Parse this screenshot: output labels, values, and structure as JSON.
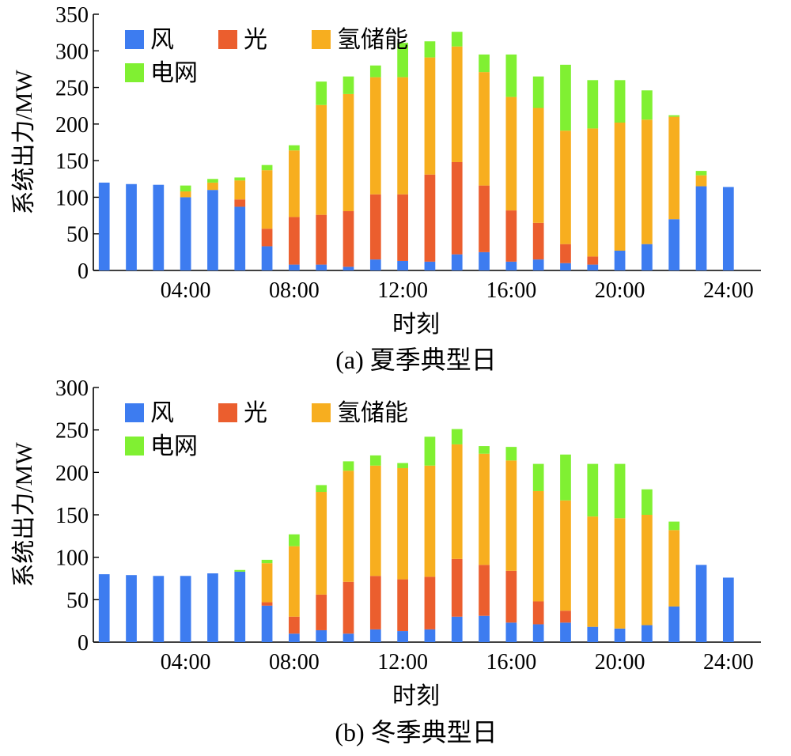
{
  "colors": {
    "wind": "#3D7CF0",
    "solar": "#EB5E2E",
    "hydrogen": "#F7AE1F",
    "grid": "#80F032"
  },
  "chart_data": [
    {
      "type": "bar",
      "stacked": true,
      "panel_caption": "(a) 夏季典型日",
      "xlabel": "时刻",
      "ylabel": "系统出力/MW",
      "ylim": [
        0,
        350
      ],
      "yticks": [
        0,
        50,
        100,
        150,
        200,
        250,
        300,
        350
      ],
      "xticks": [
        "04:00",
        "08:00",
        "12:00",
        "16:00",
        "20:00",
        "24:00"
      ],
      "xtick_hours": [
        4,
        8,
        12,
        16,
        20,
        24
      ],
      "x": [
        1,
        2,
        3,
        4,
        5,
        6,
        7,
        8,
        9,
        10,
        11,
        12,
        13,
        14,
        15,
        16,
        17,
        18,
        19,
        20,
        21,
        22,
        23,
        24
      ],
      "legend_position": "top-left",
      "series": [
        {
          "name": "风",
          "color_key": "wind",
          "values": [
            120,
            118,
            117,
            100,
            110,
            87,
            33,
            8,
            8,
            5,
            15,
            13,
            12,
            22,
            25,
            12,
            15,
            10,
            8,
            27,
            36,
            70,
            115,
            114
          ]
        },
        {
          "name": "光",
          "color_key": "solar",
          "values": [
            0,
            0,
            0,
            0,
            0,
            10,
            24,
            65,
            68,
            76,
            89,
            91,
            119,
            126,
            91,
            70,
            50,
            26,
            11,
            0,
            0,
            0,
            0,
            0
          ]
        },
        {
          "name": "氢储能",
          "color_key": "hydrogen",
          "values": [
            0,
            0,
            0,
            8,
            10,
            26,
            80,
            91,
            150,
            160,
            160,
            160,
            160,
            158,
            155,
            155,
            157,
            155,
            175,
            175,
            170,
            140,
            15,
            0
          ]
        },
        {
          "name": "电网",
          "color_key": "grid",
          "values": [
            0,
            0,
            0,
            8,
            5,
            4,
            7,
            7,
            32,
            24,
            16,
            47,
            22,
            20,
            24,
            58,
            43,
            90,
            66,
            58,
            40,
            2,
            6,
            0
          ]
        }
      ]
    },
    {
      "type": "bar",
      "stacked": true,
      "panel_caption": "(b) 冬季典型日",
      "xlabel": "时刻",
      "ylabel": "系统出力/MW",
      "ylim": [
        0,
        300
      ],
      "yticks": [
        0,
        50,
        100,
        150,
        200,
        250,
        300
      ],
      "xticks": [
        "04:00",
        "08:00",
        "12:00",
        "16:00",
        "20:00",
        "24:00"
      ],
      "xtick_hours": [
        4,
        8,
        12,
        16,
        20,
        24
      ],
      "x": [
        1,
        2,
        3,
        4,
        5,
        6,
        7,
        8,
        9,
        10,
        11,
        12,
        13,
        14,
        15,
        16,
        17,
        18,
        19,
        20,
        21,
        22,
        23,
        24
      ],
      "legend_position": "top-left",
      "series": [
        {
          "name": "风",
          "color_key": "wind",
          "values": [
            80,
            79,
            78,
            78,
            81,
            83,
            43,
            10,
            14,
            10,
            15,
            13,
            15,
            30,
            31,
            23,
            21,
            23,
            18,
            16,
            20,
            42,
            91,
            76
          ]
        },
        {
          "name": "光",
          "color_key": "solar",
          "values": [
            0,
            0,
            0,
            0,
            0,
            0,
            4,
            20,
            42,
            61,
            63,
            61,
            62,
            68,
            60,
            61,
            27,
            14,
            0,
            0,
            0,
            0,
            0,
            0
          ]
        },
        {
          "name": "氢储能",
          "color_key": "hydrogen",
          "values": [
            0,
            0,
            0,
            0,
            0,
            0,
            46,
            83,
            121,
            131,
            130,
            131,
            131,
            135,
            131,
            130,
            130,
            130,
            130,
            130,
            130,
            90,
            0,
            0
          ]
        },
        {
          "name": "电网",
          "color_key": "grid",
          "values": [
            0,
            0,
            0,
            0,
            0,
            2,
            4,
            14,
            8,
            11,
            12,
            6,
            34,
            18,
            9,
            16,
            32,
            54,
            62,
            64,
            30,
            10,
            0,
            0
          ]
        }
      ]
    }
  ]
}
